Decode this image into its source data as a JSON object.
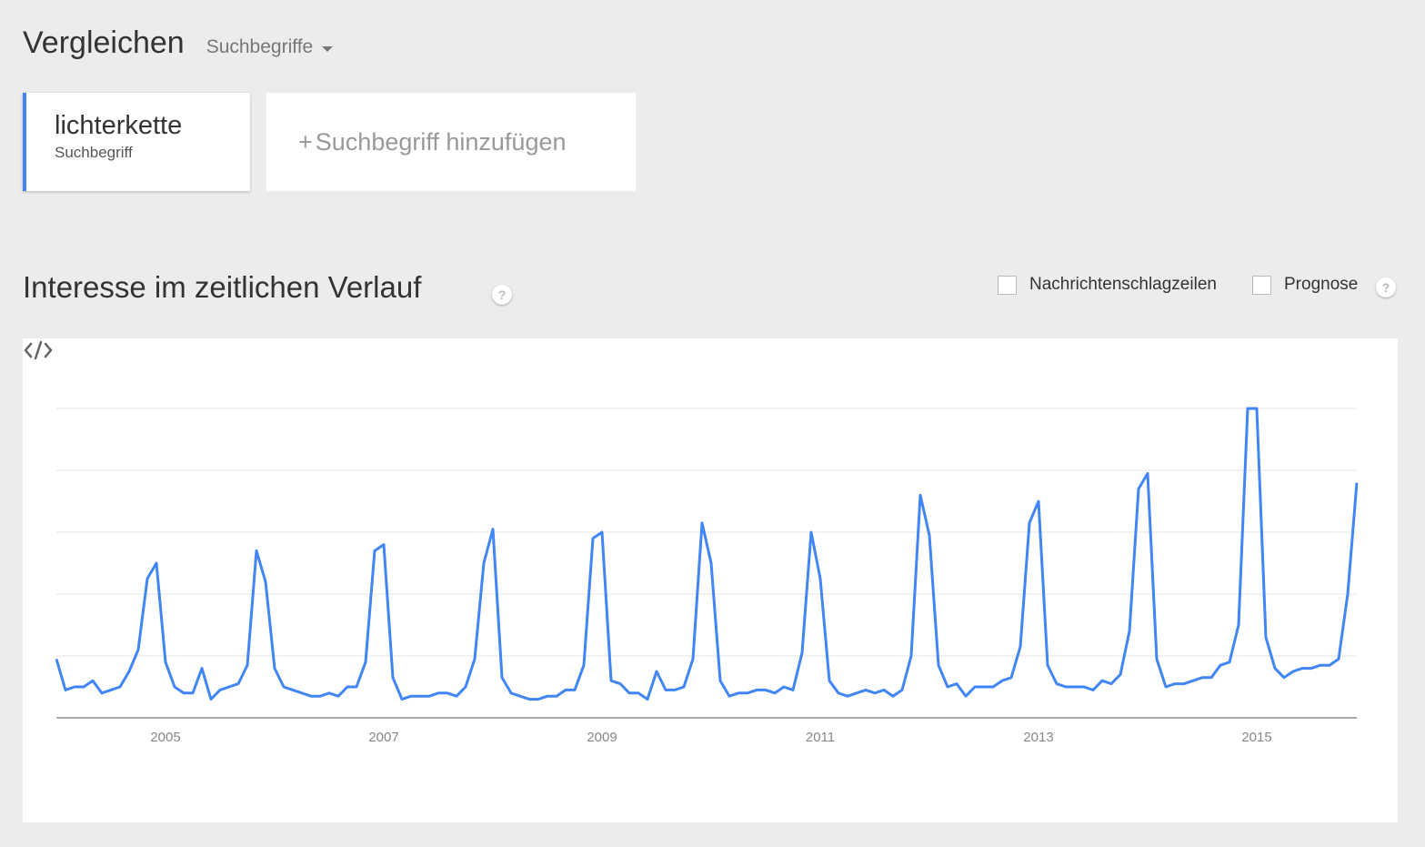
{
  "header": {
    "title": "Vergleichen",
    "compare_type": "Suchbegriffe"
  },
  "terms": [
    {
      "name": "lichterkette",
      "type": "Suchbegriff",
      "color": "#4285f4"
    }
  ],
  "add_term": {
    "plus": "+",
    "label": "Suchbegriff hinzufügen"
  },
  "section": {
    "title": "Interesse im zeitlichen Verlauf",
    "help": "?",
    "options": [
      {
        "label": "Nachrichtenschlagzeilen",
        "checked": false
      },
      {
        "label": "Prognose",
        "checked": false
      }
    ]
  },
  "chart_data": {
    "type": "line",
    "title": "",
    "xlabel": "",
    "ylabel": "",
    "x_start": "2004-01",
    "x_ticks": [
      "2005",
      "2007",
      "2009",
      "2011",
      "2013",
      "2015"
    ],
    "ylim": [
      0,
      100
    ],
    "grid": true,
    "series": [
      {
        "color": "#4285f4",
        "values": [
          19,
          9,
          10,
          10,
          12,
          8,
          9,
          10,
          15,
          22,
          45,
          50,
          18,
          10,
          8,
          8,
          16,
          6,
          9,
          10,
          11,
          17,
          54,
          44,
          16,
          10,
          9,
          8,
          7,
          7,
          8,
          7,
          10,
          10,
          18,
          54,
          56,
          13,
          6,
          7,
          7,
          7,
          8,
          8,
          7,
          10,
          19,
          50,
          61,
          13,
          8,
          7,
          6,
          6,
          7,
          7,
          9,
          9,
          17,
          58,
          60,
          12,
          11,
          8,
          8,
          6,
          15,
          9,
          9,
          10,
          19,
          63,
          50,
          12,
          7,
          8,
          8,
          9,
          9,
          8,
          10,
          9,
          21,
          60,
          45,
          12,
          8,
          7,
          8,
          9,
          8,
          9,
          7,
          9,
          20,
          72,
          59,
          17,
          10,
          11,
          7,
          10,
          10,
          10,
          12,
          13,
          23,
          63,
          70,
          17,
          11,
          10,
          10,
          10,
          9,
          12,
          11,
          14,
          28,
          74,
          79,
          19,
          10,
          11,
          11,
          12,
          13,
          13,
          17,
          18,
          30,
          100,
          100,
          26,
          16,
          13,
          15,
          16,
          16,
          17,
          17,
          19,
          40,
          76
        ]
      }
    ]
  },
  "embed": {
    "icon": "code-embed-icon"
  }
}
